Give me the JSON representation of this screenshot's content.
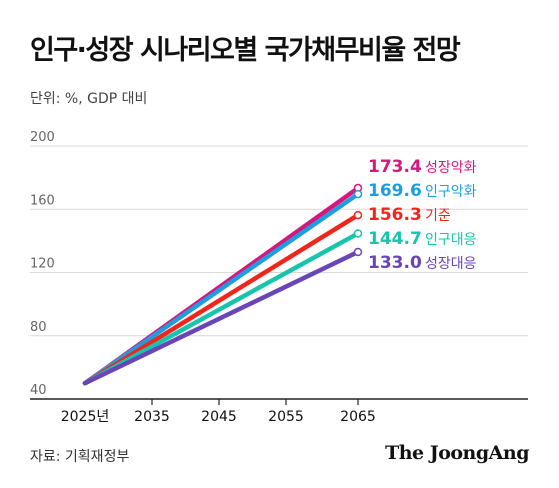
{
  "header": {
    "title": "인구·성장 시나리오별 국가채무비율 전망",
    "unit": "단위: %, GDP 대비"
  },
  "footer": {
    "source": "자료: 기획재정부",
    "brand": "The JoongAng"
  },
  "colors": {
    "grid": "#d9d9d9",
    "axis": "#222222"
  },
  "chart_data": {
    "type": "line",
    "x": [
      "2025년",
      "2035",
      "2045",
      "2055",
      "2065"
    ],
    "ylim": [
      40,
      200
    ],
    "yticks": [
      40,
      80,
      120,
      160,
      200
    ],
    "grid": true,
    "series": [
      {
        "name": "성장악화",
        "start": 50,
        "end": 173.4,
        "value_label": "173.4",
        "color": "#d6187e"
      },
      {
        "name": "인구악화",
        "start": 50,
        "end": 169.6,
        "value_label": "169.6",
        "color": "#1e9ee0"
      },
      {
        "name": "기준",
        "start": 50,
        "end": 156.3,
        "value_label": "156.3",
        "color": "#f0261d"
      },
      {
        "name": "인구대응",
        "start": 50,
        "end": 144.7,
        "value_label": "144.7",
        "color": "#17c4ac"
      },
      {
        "name": "성장대응",
        "start": 50,
        "end": 133.0,
        "value_label": "133.0",
        "color": "#6a45b8"
      }
    ]
  }
}
